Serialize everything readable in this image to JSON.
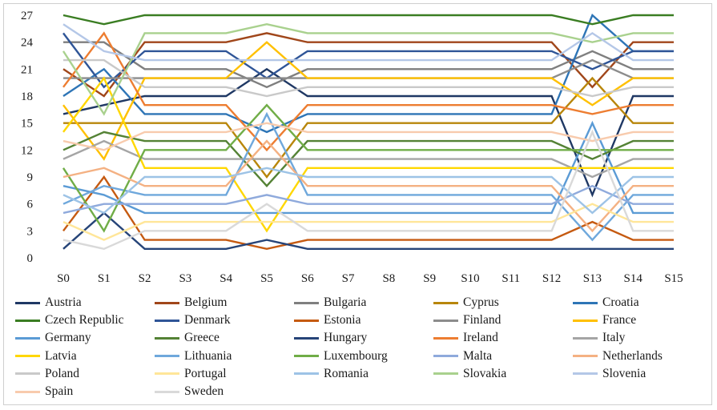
{
  "chart_data": {
    "type": "line",
    "title": "",
    "xlabel": "",
    "ylabel": "",
    "categories": [
      "S0",
      "S1",
      "S2",
      "S3",
      "S4",
      "S5",
      "S6",
      "S7",
      "S8",
      "S9",
      "S10",
      "S11",
      "S12",
      "S13",
      "S14",
      "S15"
    ],
    "ylim": [
      0,
      27
    ],
    "yticks": [
      0,
      3,
      6,
      9,
      12,
      15,
      18,
      21,
      24,
      27
    ],
    "grid": false,
    "legend": "bottom",
    "series": [
      {
        "name": "Austria",
        "color": "#1f3864",
        "values": [
          16,
          17,
          18,
          18,
          18,
          21,
          18,
          18,
          18,
          18,
          18,
          18,
          18,
          7,
          18,
          18
        ]
      },
      {
        "name": "Belgium",
        "color": "#a0461a",
        "values": [
          21,
          18,
          24,
          24,
          24,
          25,
          24,
          24,
          24,
          24,
          24,
          24,
          24,
          19,
          24,
          24
        ]
      },
      {
        "name": "Bulgaria",
        "color": "#7f7f7f",
        "values": [
          24,
          24,
          21,
          21,
          21,
          19,
          21,
          21,
          21,
          21,
          21,
          21,
          21,
          23,
          21,
          21
        ]
      },
      {
        "name": "Cyprus",
        "color": "#b8860b",
        "values": [
          15,
          15,
          15,
          15,
          15,
          9,
          15,
          15,
          15,
          15,
          15,
          15,
          15,
          20,
          15,
          15
        ]
      },
      {
        "name": "Croatia",
        "color": "#2e75b6",
        "values": [
          18,
          21,
          16,
          16,
          16,
          14,
          16,
          16,
          16,
          16,
          16,
          16,
          16,
          27,
          23,
          23
        ]
      },
      {
        "name": "Czech Republic",
        "color": "#3a7d22",
        "values": [
          27,
          26,
          27,
          27,
          27,
          27,
          27,
          27,
          27,
          27,
          27,
          27,
          27,
          26,
          27,
          27
        ]
      },
      {
        "name": "Denmark",
        "color": "#2f5597",
        "values": [
          25,
          19,
          23,
          23,
          23,
          20,
          23,
          23,
          23,
          23,
          23,
          23,
          23,
          21,
          23,
          23
        ]
      },
      {
        "name": "Estonia",
        "color": "#c55a11",
        "values": [
          3,
          9,
          2,
          2,
          2,
          1,
          2,
          2,
          2,
          2,
          2,
          2,
          2,
          4,
          2,
          2
        ]
      },
      {
        "name": "Finland",
        "color": "#8c8c8c",
        "values": [
          20,
          20,
          20,
          20,
          20,
          20,
          20,
          20,
          20,
          20,
          20,
          20,
          20,
          22,
          20,
          20
        ]
      },
      {
        "name": "France",
        "color": "#ffc000",
        "values": [
          17,
          11,
          20,
          20,
          20,
          24,
          20,
          20,
          20,
          20,
          20,
          20,
          20,
          17,
          20,
          20
        ]
      },
      {
        "name": "Germany",
        "color": "#5b9bd5",
        "values": [
          8,
          7,
          5,
          5,
          5,
          5,
          5,
          5,
          5,
          5,
          5,
          5,
          5,
          15,
          5,
          5
        ]
      },
      {
        "name": "Greece",
        "color": "#548235",
        "values": [
          12,
          14,
          13,
          13,
          13,
          8,
          13,
          13,
          13,
          13,
          13,
          13,
          13,
          11,
          13,
          13
        ]
      },
      {
        "name": "Hungary",
        "color": "#264478",
        "values": [
          1,
          5,
          1,
          1,
          1,
          2,
          1,
          1,
          1,
          1,
          1,
          1,
          1,
          1,
          1,
          1
        ]
      },
      {
        "name": "Ireland",
        "color": "#ed7d31",
        "values": [
          19,
          25,
          17,
          17,
          17,
          12,
          17,
          17,
          17,
          17,
          17,
          17,
          17,
          16,
          17,
          17
        ]
      },
      {
        "name": "Italy",
        "color": "#a5a5a5",
        "values": [
          11,
          13,
          11,
          11,
          11,
          11,
          11,
          11,
          11,
          11,
          11,
          11,
          11,
          9,
          11,
          11
        ]
      },
      {
        "name": "Latvia",
        "color": "#ffd700",
        "values": [
          14,
          20,
          10,
          10,
          10,
          3,
          10,
          10,
          10,
          10,
          10,
          10,
          10,
          10,
          10,
          10
        ]
      },
      {
        "name": "Lithuania",
        "color": "#6fa8dc",
        "values": [
          6,
          8,
          7,
          7,
          7,
          16,
          7,
          7,
          7,
          7,
          7,
          7,
          7,
          2,
          7,
          7
        ]
      },
      {
        "name": "Luxembourg",
        "color": "#70ad47",
        "values": [
          10,
          3,
          12,
          12,
          12,
          17,
          12,
          12,
          12,
          12,
          12,
          12,
          12,
          12,
          12,
          12
        ]
      },
      {
        "name": "Malta",
        "color": "#8faadc",
        "values": [
          5,
          6,
          6,
          6,
          6,
          7,
          6,
          6,
          6,
          6,
          6,
          6,
          6,
          8,
          6,
          6
        ]
      },
      {
        "name": "Netherlands",
        "color": "#f4b183",
        "values": [
          9,
          10,
          8,
          8,
          8,
          13,
          8,
          8,
          8,
          8,
          8,
          8,
          8,
          3,
          8,
          8
        ]
      },
      {
        "name": "Poland",
        "color": "#c9c9c9",
        "values": [
          22,
          22,
          19,
          19,
          19,
          18,
          19,
          19,
          19,
          19,
          19,
          19,
          19,
          18,
          19,
          19
        ]
      },
      {
        "name": "Portugal",
        "color": "#ffe699",
        "values": [
          4,
          2,
          4,
          4,
          4,
          4,
          4,
          4,
          4,
          4,
          4,
          4,
          4,
          6,
          4,
          4
        ]
      },
      {
        "name": "Romania",
        "color": "#9dc3e6",
        "values": [
          7,
          5,
          9,
          9,
          9,
          10,
          9,
          9,
          9,
          9,
          9,
          9,
          9,
          5,
          9,
          9
        ]
      },
      {
        "name": "Slovakia",
        "color": "#a9d18e",
        "values": [
          23,
          16,
          25,
          25,
          25,
          26,
          25,
          25,
          25,
          25,
          25,
          25,
          25,
          24,
          25,
          25
        ]
      },
      {
        "name": "Slovenia",
        "color": "#b4c7e7",
        "values": [
          26,
          23,
          22,
          22,
          22,
          22,
          22,
          22,
          22,
          22,
          22,
          22,
          22,
          25,
          22,
          22
        ]
      },
      {
        "name": "Spain",
        "color": "#f8cbad",
        "values": [
          13,
          12,
          14,
          14,
          14,
          15,
          14,
          14,
          14,
          14,
          14,
          14,
          14,
          13,
          14,
          14
        ]
      },
      {
        "name": "Sweden",
        "color": "#d9d9d9",
        "values": [
          2,
          1,
          3,
          3,
          3,
          6,
          3,
          3,
          3,
          3,
          3,
          3,
          3,
          14,
          3,
          3
        ]
      }
    ]
  }
}
